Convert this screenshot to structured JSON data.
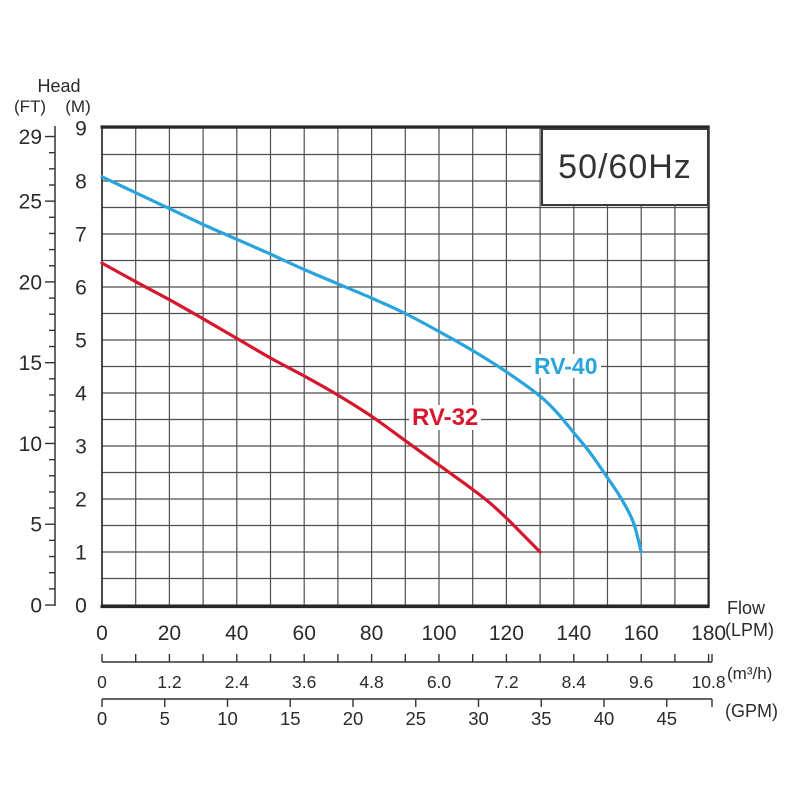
{
  "y_axis_labels": {
    "head": "Head",
    "ft": "(FT)",
    "m": "(M)"
  },
  "x_axis_labels": {
    "flow": "Flow",
    "lpm": "(LPM)",
    "m3h": "(m³/h)",
    "gpm": "(GPM)"
  },
  "frequency_label": "50/60Hz",
  "colors": {
    "rv40": "#29a4dc",
    "rv32": "#d6182e",
    "grid": "#4f4f4f",
    "border": "#262626",
    "text": "#2b2b2b"
  },
  "chart_data": {
    "type": "line",
    "title": "50/60Hz",
    "xlabel": "Flow",
    "ylabel": "Head",
    "x_units": [
      "LPM",
      "m³/h",
      "GPM"
    ],
    "y_units": [
      "FT",
      "M"
    ],
    "x_range_lpm": [
      0,
      180
    ],
    "y_range_m": [
      0,
      9
    ],
    "grid": {
      "x_step_lpm": 10,
      "y_step_m": 0.5,
      "visible": true
    },
    "lpm_tick_labels": [
      0,
      20,
      40,
      60,
      80,
      100,
      120,
      140,
      160,
      180
    ],
    "m3h_tick_labels": [
      "0",
      "1.2",
      "2.4",
      "3.6",
      "4.8",
      "6.0",
      "7.2",
      "8.4",
      "9.6",
      "10.8"
    ],
    "m3h_minor_step": 0.6,
    "gpm_tick_labels": [
      "0",
      "5",
      "10",
      "15",
      "20",
      "25",
      "30",
      "35",
      "40",
      "45"
    ],
    "m_tick_labels": [
      0,
      1,
      2,
      3,
      4,
      5,
      6,
      7,
      8,
      9
    ],
    "ft_tick_labels": [
      0,
      5,
      10,
      15,
      20,
      25,
      29
    ],
    "ft_minor_step": 1,
    "series": [
      {
        "name": "RV-40",
        "color": "#29a4dc",
        "points_lpm_m": [
          [
            0,
            8.08
          ],
          [
            10,
            7.78
          ],
          [
            20,
            7.48
          ],
          [
            30,
            7.18
          ],
          [
            40,
            6.9
          ],
          [
            50,
            6.62
          ],
          [
            60,
            6.33
          ],
          [
            70,
            6.06
          ],
          [
            80,
            5.79
          ],
          [
            90,
            5.5
          ],
          [
            100,
            5.16
          ],
          [
            110,
            4.8
          ],
          [
            120,
            4.4
          ],
          [
            130,
            3.94
          ],
          [
            135,
            3.63
          ],
          [
            140,
            3.25
          ],
          [
            145,
            2.86
          ],
          [
            150,
            2.4
          ],
          [
            153,
            2.12
          ],
          [
            156,
            1.79
          ],
          [
            158,
            1.5
          ],
          [
            160,
            1.0
          ]
        ]
      },
      {
        "name": "RV-32",
        "color": "#d6182e",
        "points_lpm_m": [
          [
            0,
            6.45
          ],
          [
            10,
            6.1
          ],
          [
            20,
            5.76
          ],
          [
            30,
            5.4
          ],
          [
            40,
            5.03
          ],
          [
            50,
            4.66
          ],
          [
            60,
            4.32
          ],
          [
            70,
            3.96
          ],
          [
            80,
            3.56
          ],
          [
            90,
            3.1
          ],
          [
            100,
            2.64
          ],
          [
            110,
            2.18
          ],
          [
            115,
            1.93
          ],
          [
            120,
            1.64
          ],
          [
            125,
            1.32
          ],
          [
            130,
            1.0
          ]
        ]
      }
    ]
  }
}
